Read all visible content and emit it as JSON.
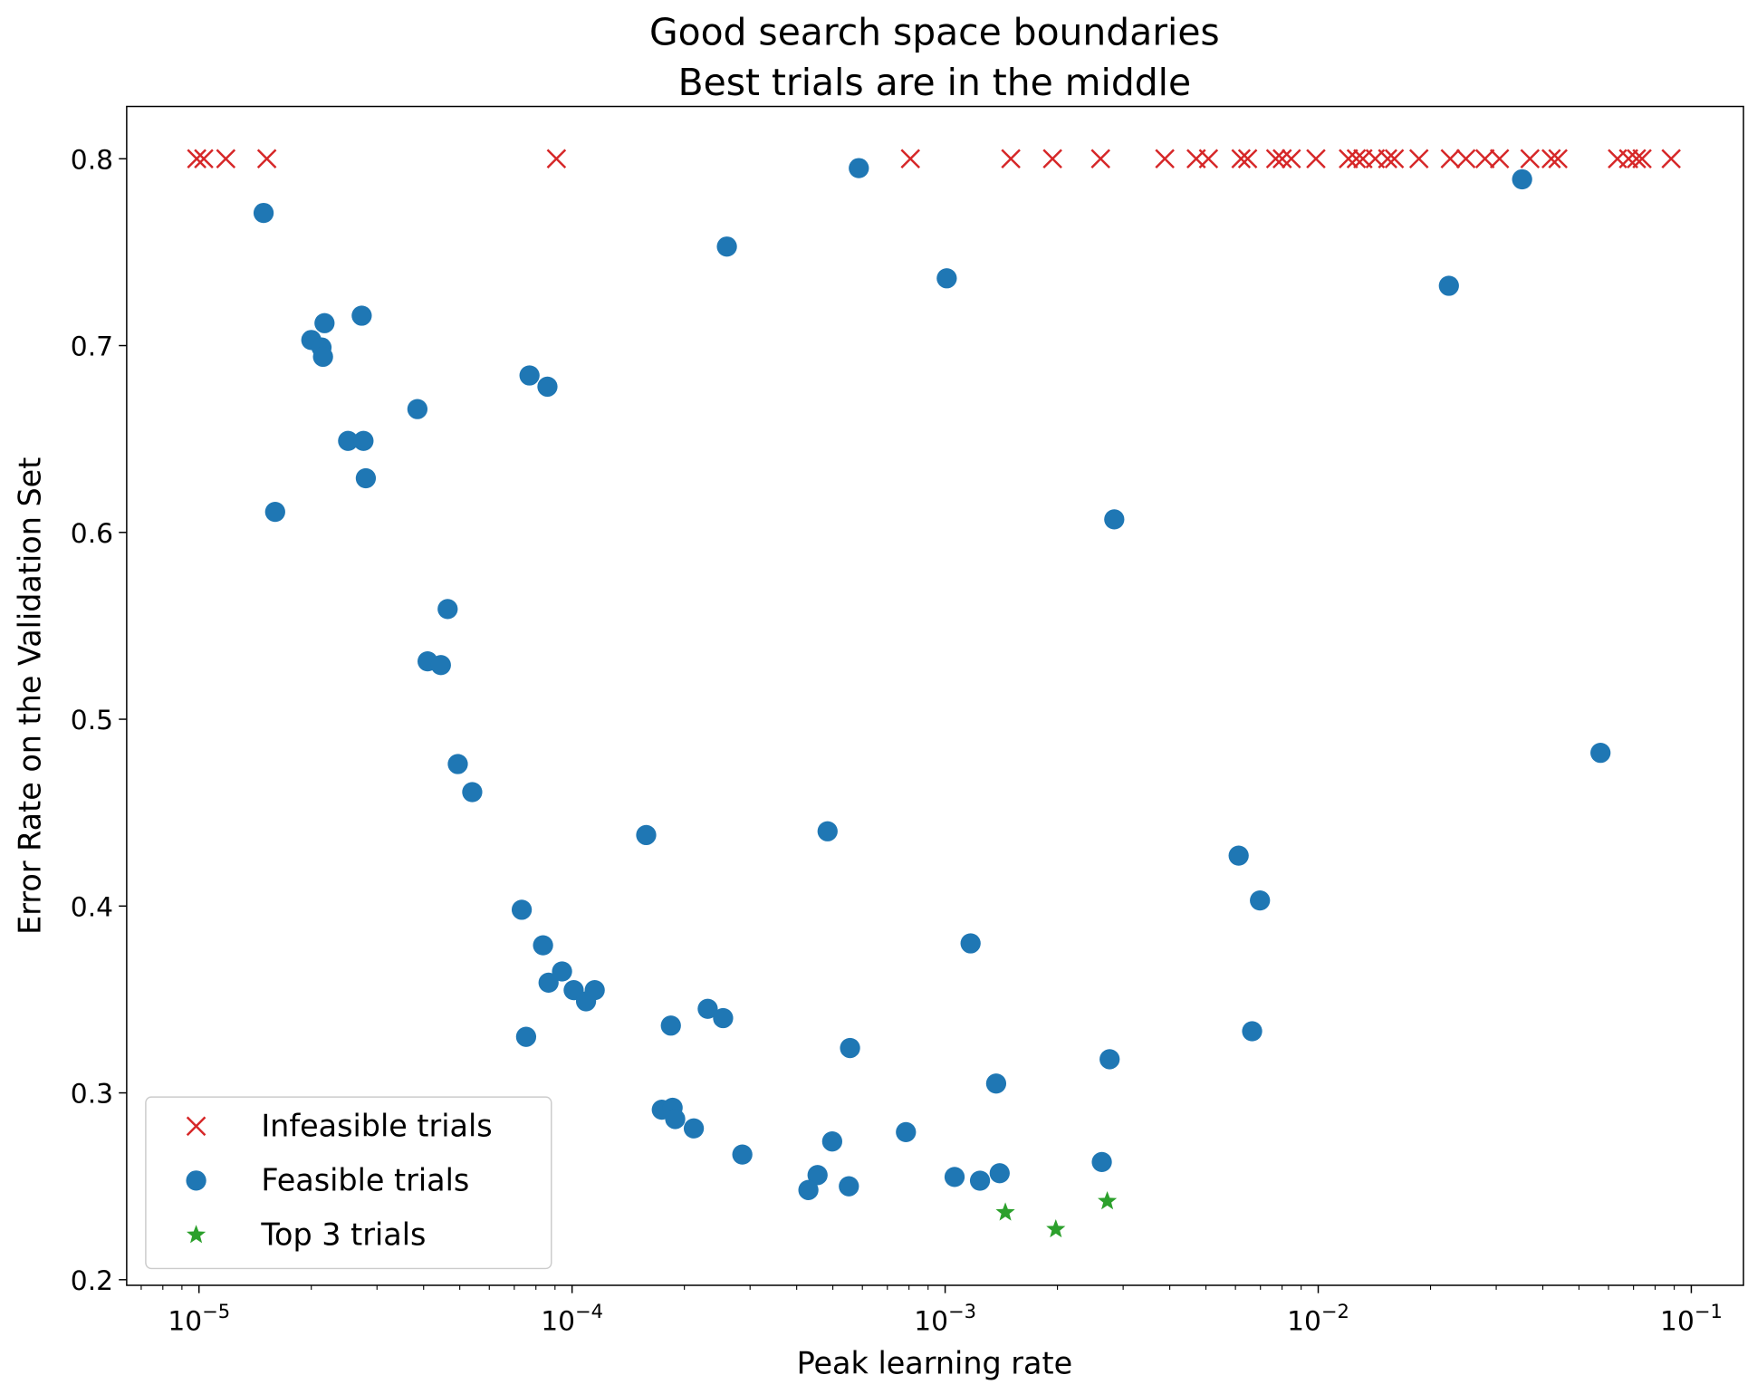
{
  "chart_data": {
    "type": "scatter",
    "title": [
      "Good search space boundaries",
      "Best trials are in the middle"
    ],
    "xlabel": "Peak learning rate",
    "ylabel": "Error Rate on the Validation Set",
    "xscale": "log",
    "xlim": [
      6.4e-06,
      0.138
    ],
    "ylim": [
      0.197,
      0.828
    ],
    "xticks": [
      1e-05,
      0.0001,
      0.001,
      0.01,
      0.1
    ],
    "xtick_labels": [
      {
        "base": "10",
        "exp": "−5"
      },
      {
        "base": "10",
        "exp": "−4"
      },
      {
        "base": "10",
        "exp": "−3"
      },
      {
        "base": "10",
        "exp": "−2"
      },
      {
        "base": "10",
        "exp": "−1"
      }
    ],
    "yticks": [
      0.2,
      0.3,
      0.4,
      0.5,
      0.6,
      0.7,
      0.8
    ],
    "ytick_labels": [
      "0.2",
      "0.3",
      "0.4",
      "0.5",
      "0.6",
      "0.7",
      "0.8"
    ],
    "grid": false,
    "legend_placement": "lower-left",
    "series": [
      {
        "name": "Infeasible trials",
        "marker": "x",
        "color": "#d62728",
        "points": [
          [
            9.86e-06,
            0.8
          ],
          [
            1.03e-05,
            0.8
          ],
          [
            1.18e-05,
            0.8
          ],
          [
            1.52e-05,
            0.8
          ],
          [
            9.08e-05,
            0.8
          ],
          [
            0.000807,
            0.8
          ],
          [
            0.0015,
            0.8
          ],
          [
            0.00194,
            0.8
          ],
          [
            0.00261,
            0.8
          ],
          [
            0.00388,
            0.8
          ],
          [
            0.00471,
            0.8
          ],
          [
            0.00508,
            0.8
          ],
          [
            0.00621,
            0.8
          ],
          [
            0.00647,
            0.8
          ],
          [
            0.00769,
            0.8
          ],
          [
            0.00801,
            0.8
          ],
          [
            0.00847,
            0.8
          ],
          [
            0.00986,
            0.8
          ],
          [
            0.01205,
            0.8
          ],
          [
            0.01265,
            0.8
          ],
          [
            0.01318,
            0.8
          ],
          [
            0.01422,
            0.8
          ],
          [
            0.01535,
            0.8
          ],
          [
            0.016,
            0.8
          ],
          [
            0.01862,
            0.8
          ],
          [
            0.02259,
            0.8
          ],
          [
            0.02488,
            0.8
          ],
          [
            0.02799,
            0.8
          ],
          [
            0.03062,
            0.8
          ],
          [
            0.03695,
            0.8
          ],
          [
            0.04213,
            0.8
          ],
          [
            0.04391,
            0.8
          ],
          [
            0.0634,
            0.8
          ],
          [
            0.0679,
            0.8
          ],
          [
            0.0713,
            0.8
          ],
          [
            0.0738,
            0.8
          ],
          [
            0.0883,
            0.8
          ]
        ]
      },
      {
        "name": "Feasible trials",
        "marker": "circle",
        "color": "#1f77b4",
        "points": [
          [
            1.49e-05,
            0.771
          ],
          [
            2e-05,
            0.703
          ],
          [
            2.13e-05,
            0.699
          ],
          [
            2.17e-05,
            0.712
          ],
          [
            2.15e-05,
            0.694
          ],
          [
            2.73e-05,
            0.716
          ],
          [
            2.51e-05,
            0.649
          ],
          [
            2.76e-05,
            0.649
          ],
          [
            2.8e-05,
            0.629
          ],
          [
            1.6e-05,
            0.611
          ],
          [
            3.85e-05,
            0.666
          ],
          [
            7.69e-05,
            0.684
          ],
          [
            8.59e-05,
            0.678
          ],
          [
            0.00026,
            0.753
          ],
          [
            0.000587,
            0.795
          ],
          [
            0.00101,
            0.736
          ],
          [
            0.0352,
            0.789
          ],
          [
            0.0224,
            0.732
          ],
          [
            0.00284,
            0.607
          ],
          [
            4.64e-05,
            0.559
          ],
          [
            4.1e-05,
            0.531
          ],
          [
            4.45e-05,
            0.529
          ],
          [
            4.94e-05,
            0.476
          ],
          [
            5.4e-05,
            0.461
          ],
          [
            0.000158,
            0.438
          ],
          [
            0.000484,
            0.44
          ],
          [
            0.00612,
            0.427
          ],
          [
            0.00698,
            0.403
          ],
          [
            7.33e-05,
            0.398
          ],
          [
            8.36e-05,
            0.379
          ],
          [
            8.65e-05,
            0.359
          ],
          [
            9.4e-05,
            0.365
          ],
          [
            0.000101,
            0.355
          ],
          [
            0.000109,
            0.349
          ],
          [
            0.000115,
            0.355
          ],
          [
            7.53e-05,
            0.33
          ],
          [
            0.000184,
            0.336
          ],
          [
            0.000231,
            0.345
          ],
          [
            0.000254,
            0.34
          ],
          [
            0.000556,
            0.324
          ],
          [
            0.00117,
            0.38
          ],
          [
            0.00665,
            0.333
          ],
          [
            0.00137,
            0.305
          ],
          [
            0.00276,
            0.318
          ],
          [
            0.000174,
            0.291
          ],
          [
            0.000186,
            0.292
          ],
          [
            0.000189,
            0.286
          ],
          [
            0.000212,
            0.281
          ],
          [
            0.000286,
            0.267
          ],
          [
            0.000498,
            0.274
          ],
          [
            0.000785,
            0.279
          ],
          [
            0.000455,
            0.256
          ],
          [
            0.00043,
            0.248
          ],
          [
            0.000552,
            0.25
          ],
          [
            0.00106,
            0.255
          ],
          [
            0.00124,
            0.253
          ],
          [
            0.0014,
            0.257
          ],
          [
            0.00263,
            0.263
          ],
          [
            0.0571,
            0.482
          ]
        ]
      },
      {
        "name": "Top 3 trials",
        "marker": "star",
        "color": "#2ca02c",
        "points": [
          [
            0.00145,
            0.236
          ],
          [
            0.00198,
            0.227
          ],
          [
            0.00272,
            0.242
          ]
        ]
      }
    ]
  }
}
